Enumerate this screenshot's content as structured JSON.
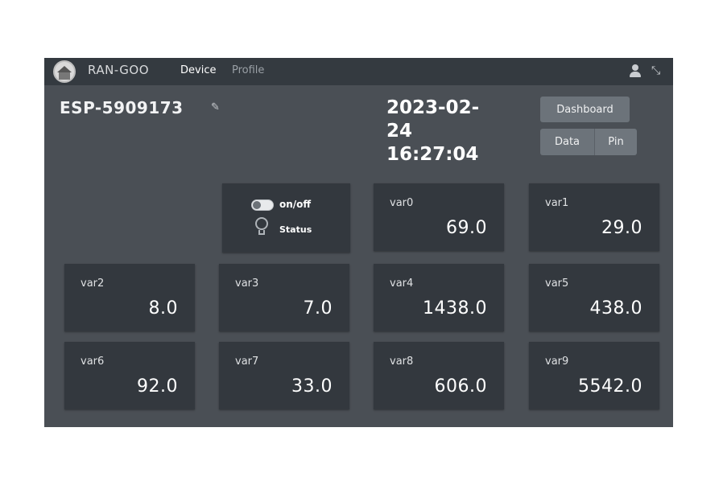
{
  "header": {
    "brand": "RAN-GOO",
    "nav": {
      "device": "Device",
      "profile": "Profile"
    }
  },
  "device": {
    "title": "ESP-5909173",
    "datetime_date": "2023-02-",
    "datetime_day": "24",
    "datetime_time": "16:27:04"
  },
  "buttons": {
    "dashboard": "Dashboard",
    "data": "Data",
    "pin": "Pin"
  },
  "control": {
    "switch_label": "on/off",
    "status_label": "Status"
  },
  "vars": [
    {
      "label": "var0",
      "value": "69.0"
    },
    {
      "label": "var1",
      "value": "29.0"
    },
    {
      "label": "var2",
      "value": "8.0"
    },
    {
      "label": "var3",
      "value": "7.0"
    },
    {
      "label": "var4",
      "value": "1438.0"
    },
    {
      "label": "var5",
      "value": "438.0"
    },
    {
      "label": "var6",
      "value": "92.0"
    },
    {
      "label": "var7",
      "value": "33.0"
    },
    {
      "label": "var8",
      "value": "606.0"
    },
    {
      "label": "var9",
      "value": "5542.0"
    }
  ],
  "icons": {
    "logo": "house-logo-icon",
    "user": "user-icon",
    "fullscreen": "shrink-icon",
    "edit": "edit-icon",
    "switch": "toggle-switch-icon",
    "status": "bulb-icon"
  }
}
